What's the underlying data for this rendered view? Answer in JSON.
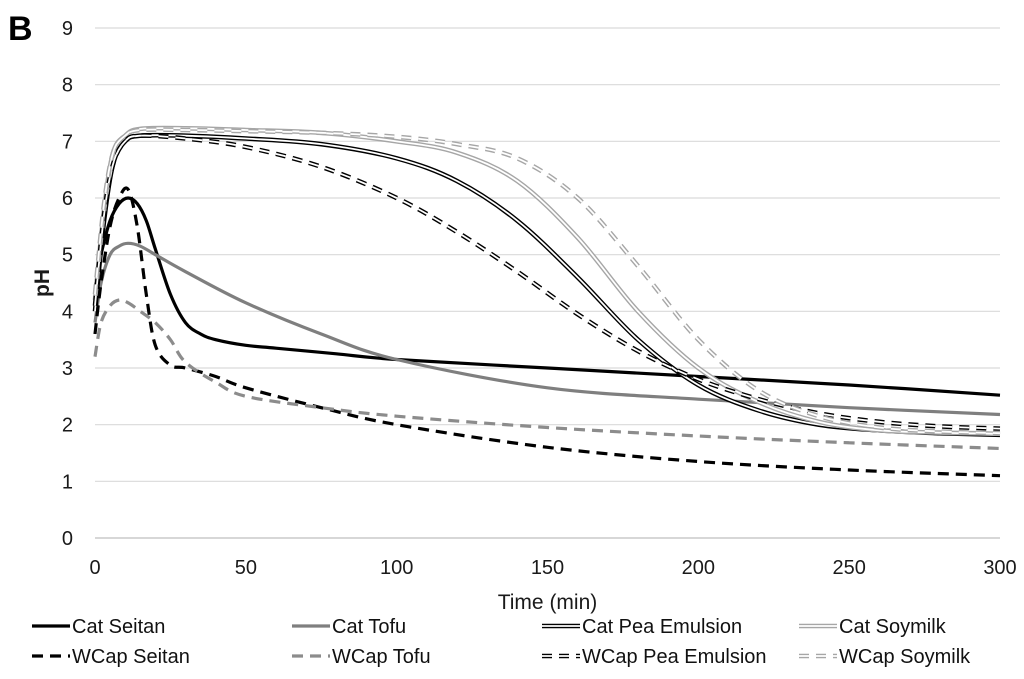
{
  "chart_data": {
    "type": "line",
    "panel_label": "B",
    "xlabel": "Time (min)",
    "ylabel": "pH",
    "xlim": [
      0,
      300
    ],
    "ylim": [
      0,
      9
    ],
    "x_ticks": [
      0,
      50,
      100,
      150,
      200,
      250,
      300
    ],
    "y_ticks": [
      0,
      1,
      2,
      3,
      4,
      5,
      6,
      7,
      8,
      9
    ],
    "grid": "horizontal",
    "legend_position": "bottom",
    "series": [
      {
        "name": "Cat Seitan",
        "color": "#000000",
        "style": "solid",
        "x": [
          0,
          2,
          5,
          8,
          11,
          14,
          17,
          20,
          25,
          30,
          35,
          40,
          50,
          60,
          80,
          100,
          150,
          200,
          250,
          300
        ],
        "y": [
          4.4,
          5.0,
          5.6,
          5.9,
          6.0,
          5.9,
          5.6,
          5.1,
          4.3,
          3.8,
          3.6,
          3.5,
          3.4,
          3.35,
          3.25,
          3.15,
          3.0,
          2.85,
          2.7,
          2.52
        ]
      },
      {
        "name": "Cat Tofu",
        "color": "#7f7f7f",
        "style": "solid",
        "x": [
          0,
          2,
          5,
          8,
          11,
          15,
          20,
          30,
          50,
          75,
          100,
          150,
          200,
          250,
          300
        ],
        "y": [
          3.8,
          4.5,
          5.0,
          5.15,
          5.2,
          5.15,
          5.0,
          4.7,
          4.15,
          3.6,
          3.15,
          2.65,
          2.45,
          2.3,
          2.18
        ]
      },
      {
        "name": "Cat Pea Emulsion",
        "color": "#000000",
        "style": "double",
        "x": [
          0,
          3,
          6,
          10,
          15,
          30,
          50,
          75,
          100,
          120,
          140,
          160,
          180,
          200,
          220,
          240,
          260,
          280,
          300
        ],
        "y": [
          4.0,
          5.6,
          6.6,
          7.0,
          7.1,
          7.1,
          7.05,
          6.95,
          6.7,
          6.3,
          5.6,
          4.6,
          3.5,
          2.7,
          2.25,
          2.0,
          1.9,
          1.85,
          1.82
        ]
      },
      {
        "name": "Cat Soymilk",
        "color": "#a6a6a6",
        "style": "double",
        "x": [
          0,
          3,
          6,
          10,
          15,
          30,
          50,
          75,
          100,
          120,
          140,
          160,
          180,
          200,
          220,
          240,
          260,
          280,
          300
        ],
        "y": [
          4.2,
          5.8,
          6.8,
          7.1,
          7.22,
          7.23,
          7.2,
          7.15,
          7.0,
          6.8,
          6.3,
          5.3,
          4.0,
          3.0,
          2.4,
          2.05,
          1.9,
          1.86,
          1.84
        ]
      },
      {
        "name": "WCap Seitan",
        "color": "#000000",
        "style": "dashed",
        "x": [
          0,
          2,
          5,
          8,
          11,
          14,
          17,
          20,
          25,
          30,
          40,
          50,
          75,
          100,
          150,
          200,
          250,
          300
        ],
        "y": [
          3.6,
          4.5,
          5.5,
          6.0,
          6.15,
          5.5,
          4.3,
          3.4,
          3.05,
          3.0,
          2.85,
          2.65,
          2.3,
          2.0,
          1.6,
          1.35,
          1.2,
          1.1
        ]
      },
      {
        "name": "WCap Tofu",
        "color": "#8c8c8c",
        "style": "dashed",
        "x": [
          0,
          2,
          5,
          8,
          11,
          15,
          20,
          25,
          30,
          40,
          50,
          75,
          100,
          150,
          200,
          250,
          300
        ],
        "y": [
          3.2,
          3.8,
          4.1,
          4.2,
          4.15,
          4.0,
          3.8,
          3.5,
          3.1,
          2.75,
          2.5,
          2.3,
          2.15,
          1.95,
          1.8,
          1.68,
          1.58
        ]
      },
      {
        "name": "WCap Pea Emulsion",
        "color": "#000000",
        "style": "double-dashed",
        "x": [
          0,
          3,
          6,
          10,
          15,
          30,
          50,
          75,
          100,
          120,
          140,
          160,
          180,
          200,
          220,
          240,
          260,
          280,
          300
        ],
        "y": [
          4.1,
          5.7,
          6.6,
          7.0,
          7.1,
          7.05,
          6.9,
          6.55,
          6.0,
          5.4,
          4.7,
          3.95,
          3.3,
          2.8,
          2.45,
          2.2,
          2.05,
          1.97,
          1.93
        ]
      },
      {
        "name": "WCap Soymilk",
        "color": "#a6a6a6",
        "style": "double-dashed",
        "x": [
          0,
          3,
          6,
          10,
          15,
          30,
          50,
          75,
          100,
          120,
          140,
          160,
          180,
          200,
          220,
          240,
          260,
          280,
          300
        ],
        "y": [
          4.3,
          5.9,
          6.8,
          7.1,
          7.2,
          7.2,
          7.18,
          7.15,
          7.08,
          6.95,
          6.7,
          6.0,
          4.8,
          3.5,
          2.6,
          2.15,
          1.95,
          1.88,
          1.85
        ]
      }
    ]
  }
}
